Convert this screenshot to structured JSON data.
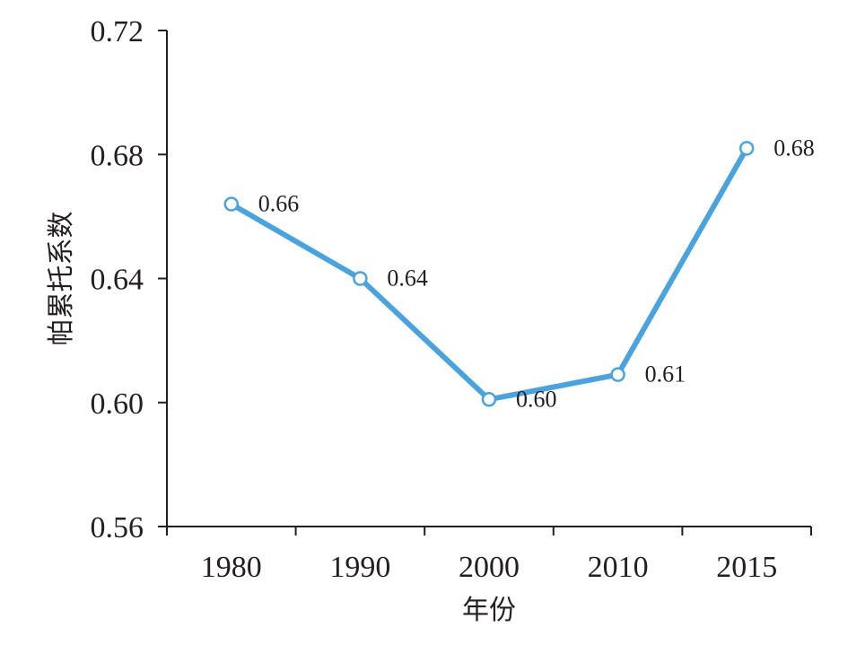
{
  "chart_data": {
    "type": "line",
    "title": "",
    "xlabel": "年份",
    "ylabel": "帕累托系数",
    "categories": [
      "1980",
      "1990",
      "2000",
      "2010",
      "2015"
    ],
    "series": [
      {
        "values": [
          0.664,
          0.64,
          0.601,
          0.609,
          0.682
        ],
        "labels": [
          "0.66",
          "0.64",
          "0.60",
          "0.61",
          "0.68"
        ],
        "color": "#4aa3dc",
        "marker": "hollow-circle"
      }
    ],
    "ylim": [
      0.56,
      0.72
    ],
    "yticks": [
      "0.56",
      "0.60",
      "0.64",
      "0.68",
      "0.72"
    ],
    "grid": false,
    "legend": "none"
  }
}
